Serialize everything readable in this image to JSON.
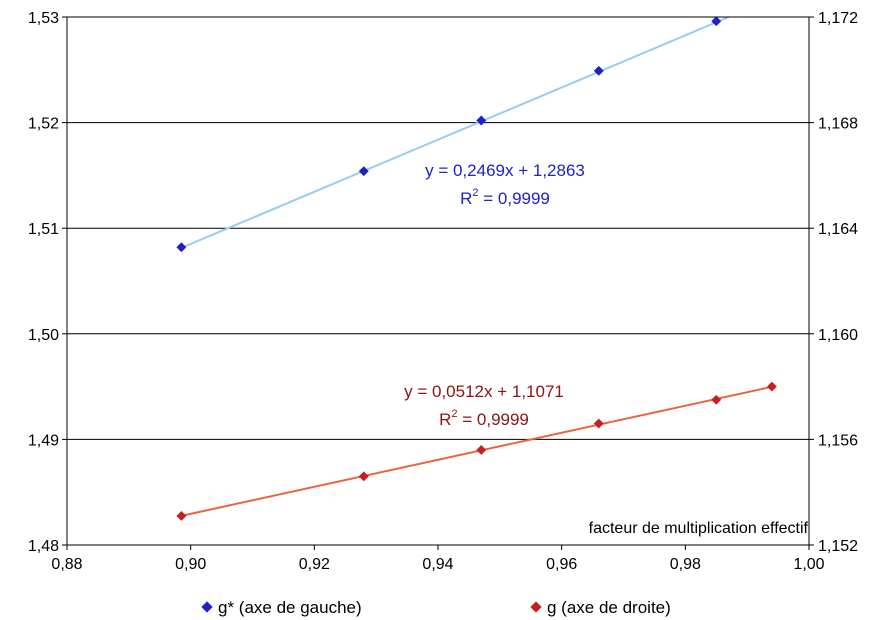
{
  "chart_data": {
    "type": "scatter",
    "xlabel": "facteur de multiplication effectif",
    "x_axis": {
      "range": [
        0.88,
        1.0
      ],
      "ticks": [
        "0,88",
        "0,90",
        "0,92",
        "0,94",
        "0,96",
        "0,98",
        "1,00"
      ],
      "tick_values": [
        0.88,
        0.9,
        0.92,
        0.94,
        0.96,
        0.98,
        1.0
      ]
    },
    "y_left": {
      "range": [
        1.48,
        1.53
      ],
      "ticks": [
        "1,48",
        "1,49",
        "1,50",
        "1,51",
        "1,52",
        "1,53"
      ],
      "tick_values": [
        1.48,
        1.49,
        1.5,
        1.51,
        1.52,
        1.53
      ]
    },
    "y_right": {
      "range": [
        1.152,
        1.172
      ],
      "ticks": [
        "1,152",
        "1,156",
        "1,160",
        "1,164",
        "1,168",
        "1,172"
      ],
      "tick_values": [
        1.152,
        1.156,
        1.16,
        1.164,
        1.168,
        1.172
      ]
    },
    "grid": "horizontal",
    "legend": "bottom",
    "series": [
      {
        "name": "g* (axe de gauche)",
        "axis": "left",
        "marker_color": "#1f1fc8",
        "line_color": "#99ccee",
        "x": [
          0.8985,
          0.928,
          0.947,
          0.966,
          0.985
        ],
        "y": [
          1.5082,
          1.5154,
          1.5202,
          1.5249,
          1.5296
        ],
        "trendline": {
          "slope": 0.2469,
          "intercept": 1.2863,
          "x_range": [
            0.8985,
            0.987
          ]
        },
        "equation": "y = 0,2469x + 1,2863",
        "r2_prefix": "R",
        "r2_sup": "2",
        "r2_value": " = 0,9999",
        "label_color": "#2020cc"
      },
      {
        "name": "g (axe de droite)",
        "axis": "right",
        "marker_color": "#c81e1e",
        "line_color": "#e8643c",
        "x": [
          0.8985,
          0.928,
          0.947,
          0.966,
          0.985,
          0.994
        ],
        "y": [
          1.1531,
          1.1546,
          1.1556,
          1.1566,
          1.1575,
          1.158
        ],
        "trendline": {
          "slope": 0.0512,
          "intercept": 1.1071,
          "x_range": [
            0.8985,
            0.994
          ]
        },
        "equation": "y = 0,0512x + 1,1071",
        "r2_prefix": "R",
        "r2_sup": "2",
        "r2_value": " = 0,9999",
        "label_color": "#8b1414"
      }
    ]
  }
}
